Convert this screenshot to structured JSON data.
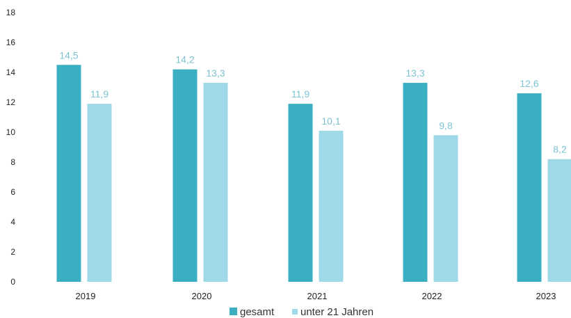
{
  "chart_data": {
    "type": "bar",
    "categories": [
      "2019",
      "2020",
      "2021",
      "2022",
      "2023"
    ],
    "series": [
      {
        "name": "gesamt",
        "values": [
          14.5,
          14.2,
          11.9,
          13.3,
          12.6
        ],
        "labels": [
          "14,5",
          "14,2",
          "11,9",
          "13,3",
          "12,6"
        ],
        "color": "#3aafc2"
      },
      {
        "name": "unter 21 Jahren",
        "values": [
          11.9,
          13.3,
          10.1,
          9.8,
          8.2
        ],
        "labels": [
          "11,9",
          "13,3",
          "10,1",
          "9,8",
          "8,2"
        ],
        "color": "#9fd9e8"
      }
    ],
    "yticks": [
      "0",
      "2",
      "4",
      "6",
      "8",
      "10",
      "12",
      "14",
      "16",
      "18"
    ],
    "ylim": [
      0,
      18
    ],
    "grid": false,
    "legend_position": "bottom-center",
    "data_label_color": "#7cc3d3"
  }
}
